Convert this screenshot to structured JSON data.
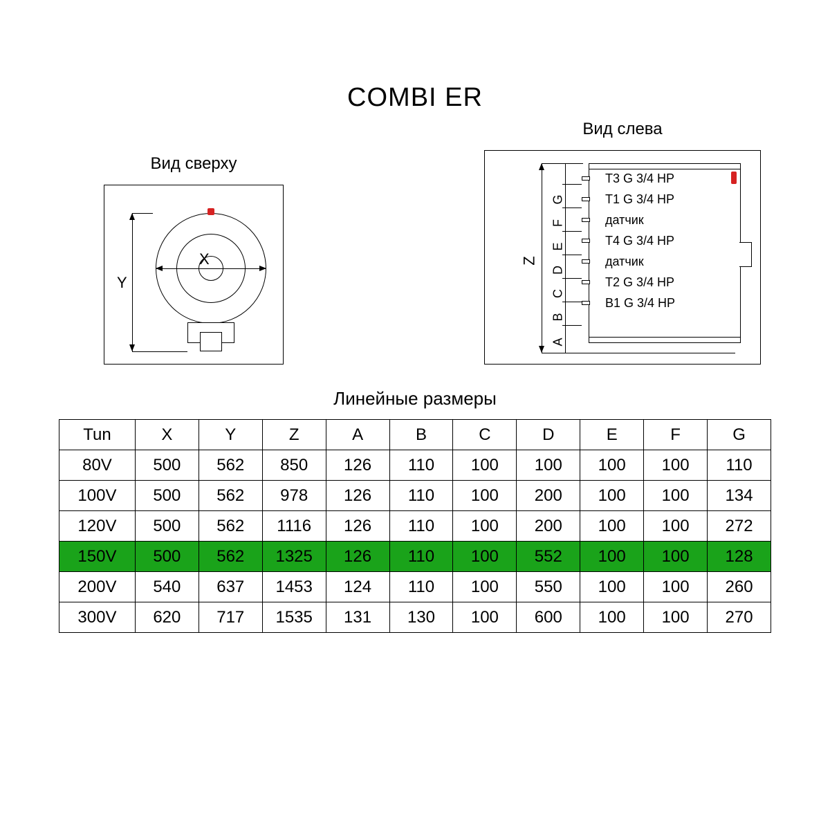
{
  "title": "COMBI ER",
  "views": {
    "top": {
      "title": "Вид сверху",
      "xLabel": "X",
      "yLabel": "Y"
    },
    "left": {
      "title": "Вид слева",
      "zLabel": "Z",
      "dimLabels": [
        "A",
        "B",
        "C",
        "D",
        "E",
        "F",
        "G"
      ],
      "portLabels": [
        "T3 G 3/4 HP",
        "T1 G 3/4 HP",
        "датчик",
        "T4 G 3/4 HP",
        "датчик",
        "T2 G 3/4 HP",
        "B1 G 3/4 HP"
      ]
    }
  },
  "table": {
    "title": "Линейные размеры",
    "columns": [
      "Tun",
      "X",
      "Y",
      "Z",
      "A",
      "B",
      "C",
      "D",
      "E",
      "F",
      "G"
    ],
    "rows": [
      [
        "80V",
        "500",
        "562",
        "850",
        "126",
        "110",
        "100",
        "100",
        "100",
        "100",
        "110"
      ],
      [
        "100V",
        "500",
        "562",
        "978",
        "126",
        "110",
        "100",
        "200",
        "100",
        "100",
        "134"
      ],
      [
        "120V",
        "500",
        "562",
        "1116",
        "126",
        "110",
        "100",
        "200",
        "100",
        "100",
        "272"
      ],
      [
        "150V",
        "500",
        "562",
        "1325",
        "126",
        "110",
        "100",
        "552",
        "100",
        "100",
        "128"
      ],
      [
        "200V",
        "540",
        "637",
        "1453",
        "124",
        "110",
        "100",
        "550",
        "100",
        "100",
        "260"
      ],
      [
        "300V",
        "620",
        "717",
        "1535",
        "131",
        "130",
        "100",
        "600",
        "100",
        "100",
        "270"
      ]
    ],
    "highlightRowIndex": 3,
    "highlightColor": "#1aa31a"
  },
  "colors": {
    "accent_red": "#d62222",
    "line": "#000000",
    "bg": "#ffffff"
  }
}
